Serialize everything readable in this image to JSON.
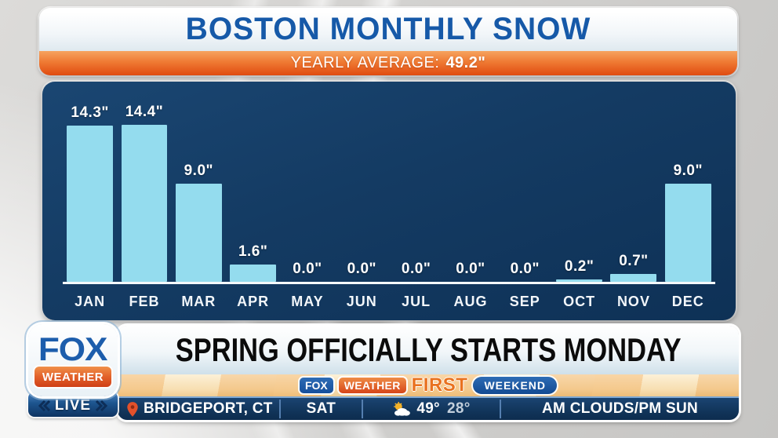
{
  "header": {
    "title": "BOSTON MONTHLY SNOW",
    "subtitle_label": "YEARLY AVERAGE:",
    "subtitle_value": "49.2\""
  },
  "chart_data": {
    "type": "bar",
    "title": "BOSTON MONTHLY SNOW",
    "subtitle": "YEARLY AVERAGE: 49.2\"",
    "categories": [
      "JAN",
      "FEB",
      "MAR",
      "APR",
      "MAY",
      "JUN",
      "JUL",
      "AUG",
      "SEP",
      "OCT",
      "NOV",
      "DEC"
    ],
    "values": [
      14.3,
      14.4,
      9.0,
      1.6,
      0.0,
      0.0,
      0.0,
      0.0,
      0.0,
      0.2,
      0.7,
      9.0
    ],
    "value_labels": [
      "14.3\"",
      "14.4\"",
      "9.0\"",
      "1.6\"",
      "0.0\"",
      "0.0\"",
      "0.0\"",
      "0.0\"",
      "0.0\"",
      "0.2\"",
      "0.7\"",
      "9.0\""
    ],
    "unit": "inches",
    "ylim": [
      0,
      16
    ],
    "grid": false,
    "legend": false,
    "bar_color": "#94dcee",
    "panel_color": "#143b63",
    "label_color": "#ffffff"
  },
  "branding": {
    "fox": "FOX",
    "weather": "WEATHER",
    "live": "LIVE",
    "strip_fox": "FOX",
    "strip_weather": "WEATHER",
    "strip_first": "FIRST",
    "strip_weekend": "WEEKEND"
  },
  "lower_third": {
    "headline": "SPRING OFFICIALLY STARTS MONDAY"
  },
  "ticker": {
    "location": "BRIDGEPORT, CT",
    "day": "SAT",
    "high": "49°",
    "low": "28°",
    "condition": "AM CLOUDS/PM SUN"
  }
}
